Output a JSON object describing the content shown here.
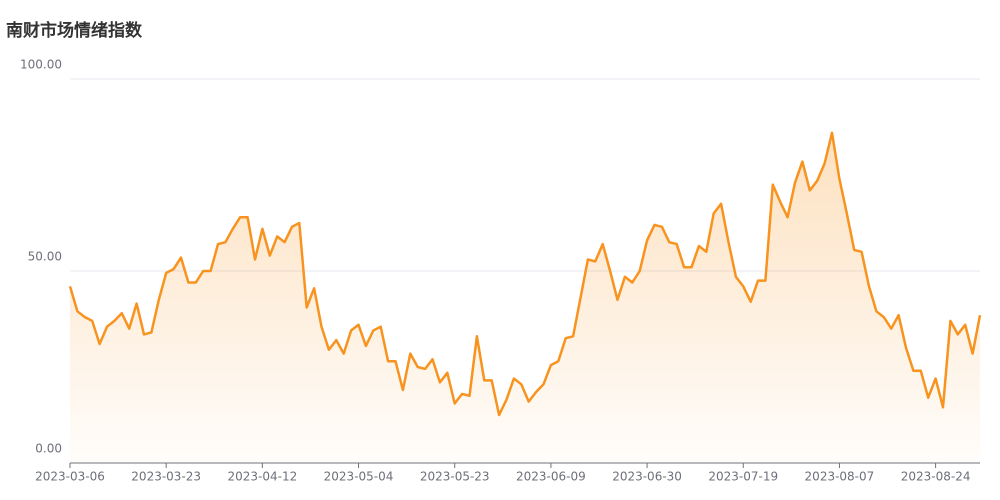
{
  "chart_data": {
    "type": "line",
    "title": "南财市场情绪指数",
    "categories": [
      "2023-03-06",
      null,
      null,
      null,
      null,
      null,
      null,
      null,
      null,
      null,
      null,
      null,
      null,
      "2023-03-23",
      null,
      null,
      null,
      null,
      null,
      null,
      null,
      null,
      null,
      null,
      null,
      null,
      "2023-04-12",
      null,
      null,
      null,
      null,
      null,
      null,
      null,
      null,
      null,
      null,
      null,
      null,
      "2023-05-04",
      null,
      null,
      null,
      null,
      null,
      null,
      null,
      null,
      null,
      null,
      null,
      null,
      "2023-05-23",
      null,
      null,
      null,
      null,
      null,
      null,
      null,
      null,
      null,
      null,
      null,
      null,
      "2023-06-09",
      null,
      null,
      null,
      null,
      null,
      null,
      null,
      null,
      null,
      null,
      null,
      null,
      "2023-06-30",
      null,
      null,
      null,
      null,
      null,
      null,
      null,
      null,
      null,
      null,
      null,
      null,
      "2023-07-19",
      null,
      null,
      null,
      null,
      null,
      null,
      null,
      null,
      null,
      null,
      null,
      null,
      "2023-08-07",
      null,
      null,
      null,
      null,
      null,
      null,
      null,
      null,
      null,
      null,
      null,
      null,
      "2023-08-24",
      null,
      null,
      null,
      null,
      null,
      null
    ],
    "values": [
      46,
      39.5,
      38,
      37,
      31,
      35.5,
      37,
      39,
      35,
      41.5,
      33.5,
      34,
      42.5,
      49.5,
      50.5,
      53.5,
      47,
      47,
      50,
      50,
      57,
      57.5,
      61,
      64,
      64,
      53,
      61,
      54,
      59,
      57.5,
      61.5,
      62.5,
      40.5,
      45.5,
      35.5,
      29.5,
      32,
      28.5,
      34.5,
      36,
      30.5,
      34.5,
      35.5,
      26.5,
      26.5,
      19,
      28.5,
      25,
      24.5,
      27,
      21,
      23.5,
      15.5,
      18,
      17.5,
      33,
      21.5,
      21.5,
      12.5,
      16.5,
      22,
      20.5,
      16,
      18.5,
      20.5,
      25.5,
      26.5,
      32.5,
      33,
      43,
      53,
      52.5,
      57,
      50,
      42.5,
      48.5,
      47,
      50,
      58,
      62,
      61.5,
      57.5,
      57,
      51,
      51,
      56.5,
      55,
      65,
      67.5,
      57.5,
      48.5,
      46,
      42,
      47.5,
      47.5,
      72.5,
      68,
      64,
      73,
      78.5,
      71,
      73.5,
      78,
      86,
      74,
      65,
      55.5,
      55,
      46,
      39.5,
      38,
      35,
      38.5,
      30,
      24,
      24,
      17,
      22,
      14.5,
      37,
      33.5,
      36,
      28.5,
      38.5
    ],
    "color": "#f7931e",
    "ylim": [
      0,
      100
    ],
    "yticks": [
      {
        "value": 0,
        "label": "0.00"
      },
      {
        "value": 50,
        "label": "50.00"
      },
      {
        "value": 100,
        "label": "100.00"
      }
    ],
    "grid": true
  }
}
